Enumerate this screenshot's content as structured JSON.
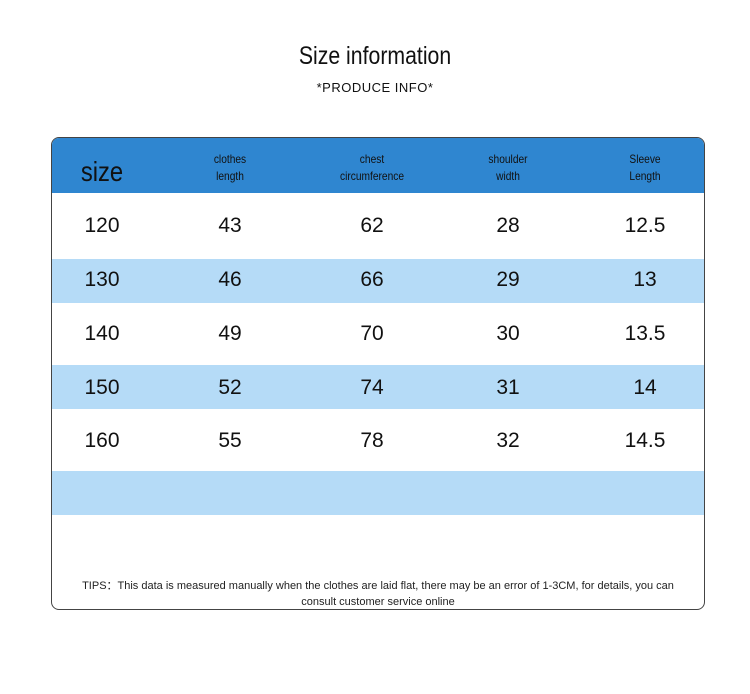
{
  "header": {
    "title": "Size information",
    "subtitle": "*PRODUCE INFO*"
  },
  "table": {
    "columns": [
      [
        "size"
      ],
      [
        "clothes",
        "length"
      ],
      [
        "chest",
        "circumference"
      ],
      [
        "shoulder",
        "width"
      ],
      [
        "Sleeve",
        "Length"
      ]
    ],
    "rows": [
      [
        120,
        43,
        62,
        28,
        12.5
      ],
      [
        130,
        46,
        66,
        29,
        13
      ],
      [
        140,
        49,
        70,
        30,
        13.5
      ],
      [
        150,
        52,
        74,
        31,
        14
      ],
      [
        160,
        55,
        78,
        32,
        14.5
      ]
    ]
  },
  "tips": "TIPS：This data is measured manually when the clothes are laid flat, there may be an error of 1-3CM, for details, you can consult customer service online"
}
